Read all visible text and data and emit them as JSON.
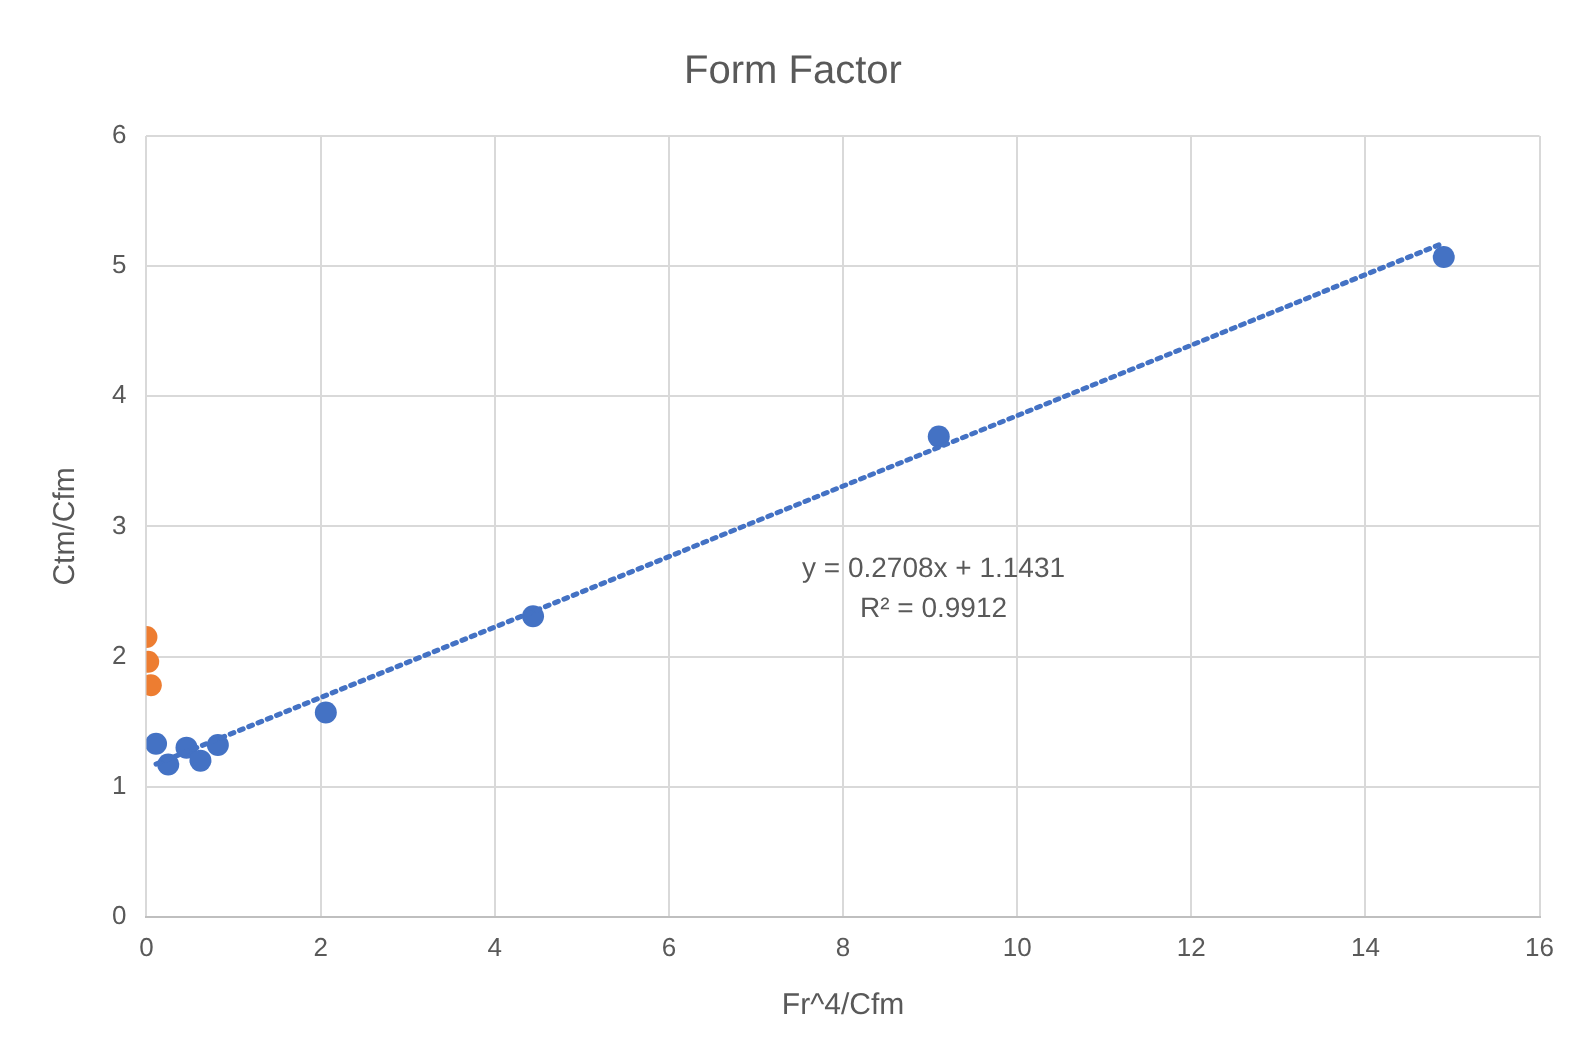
{
  "chart_data": {
    "type": "scatter",
    "title": "Form Factor",
    "xlabel": "Fr^4/Cfm",
    "ylabel": "Ctm/Cfm",
    "xlim": [
      0,
      16
    ],
    "xticks": [
      0,
      2,
      4,
      6,
      8,
      10,
      12,
      14,
      16
    ],
    "ylim": [
      0,
      6
    ],
    "yticks": [
      0,
      1,
      2,
      3,
      4,
      5,
      6
    ],
    "grid": true,
    "legend": false,
    "marker": "circle",
    "series": [
      {
        "color": "#4472c4",
        "x": [
          0.11,
          0.25,
          0.46,
          0.62,
          0.82,
          2.06,
          4.44,
          9.1,
          14.9
        ],
        "values": [
          1.33,
          1.17,
          1.3,
          1.2,
          1.32,
          1.57,
          2.31,
          3.69,
          5.07
        ]
      },
      {
        "color": "#ed7d31",
        "x": [
          0,
          0.02,
          0.05
        ],
        "values": [
          2.15,
          1.96,
          1.78
        ]
      },
      {
        "type": "line",
        "color": "#4472c4",
        "line_style": "dotted",
        "marker": "none",
        "x": [
          0.11,
          14.9
        ],
        "values": [
          1.173,
          5.178
        ]
      }
    ],
    "annotations": [
      "y = 0.2708x + 1.1431",
      "R² = 0.9912"
    ]
  }
}
